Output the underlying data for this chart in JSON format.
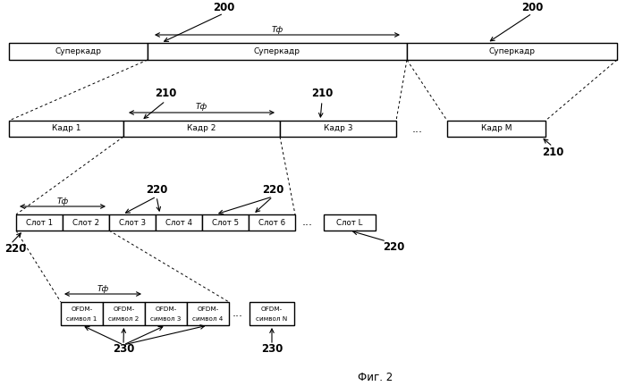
{
  "bg_color": "#ffffff",
  "title": "Фиг. 2",
  "superframe_label": "Суперкадр",
  "frame_labels": [
    "Кадр 1",
    "Кадр 2",
    "Кадр 3",
    "...",
    "Кадр M"
  ],
  "slot_labels": [
    "Слот 1",
    "Слот 2",
    "Слот 3",
    "Слот 4",
    "Слот 5",
    "Слот 6",
    "...",
    "Слот L"
  ],
  "ofdm_line1": "OFDM-",
  "ofdm_items": [
    "символ 1",
    "символ 2",
    "символ 3",
    "символ 4",
    "символ N"
  ],
  "label_200": "200",
  "label_210": "210",
  "label_220": "220",
  "label_230": "230",
  "Tf": "Tф"
}
